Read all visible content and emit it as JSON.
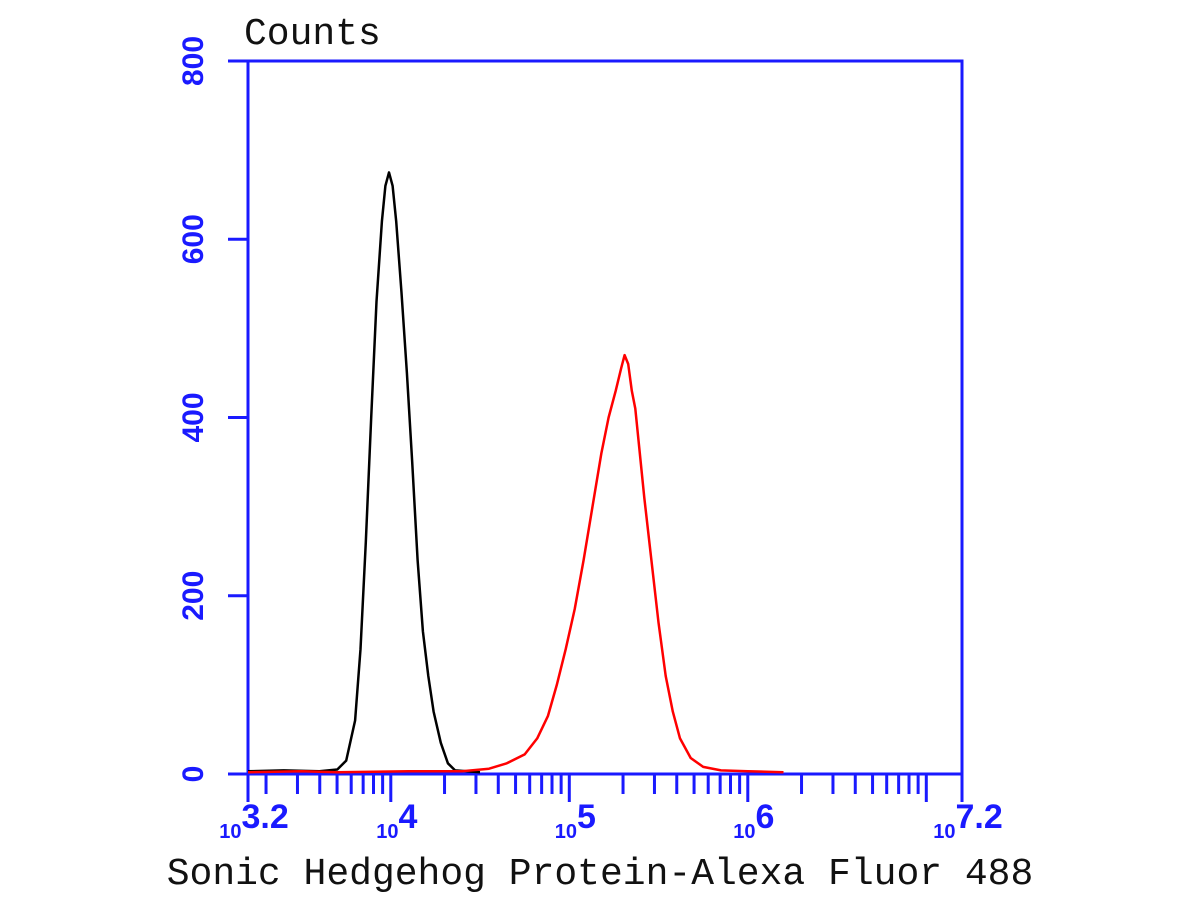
{
  "chart_data": {
    "type": "line",
    "title": "",
    "ylabel": "Counts",
    "xlabel": "Sonic Hedgehog Protein-Alexa Fluor 488",
    "x_scale": "log10",
    "xlim_log10": [
      3.2,
      7.2
    ],
    "ylim": [
      0,
      800
    ],
    "grid": false,
    "y_ticks": [
      {
        "value": 0,
        "label": "0"
      },
      {
        "value": 200,
        "label": "200"
      },
      {
        "value": 400,
        "label": "400"
      },
      {
        "value": 600,
        "label": "600"
      },
      {
        "value": 800,
        "label": "800"
      }
    ],
    "x_tick_labels": [
      {
        "exp": 3.2,
        "base": "10",
        "power": "3.2"
      },
      {
        "exp": 4,
        "base": "10",
        "power": "4"
      },
      {
        "exp": 5,
        "base": "10",
        "power": "5"
      },
      {
        "exp": 6,
        "base": "10",
        "power": "6"
      },
      {
        "exp": 7.2,
        "base": "10",
        "power": "7.2"
      }
    ],
    "series": [
      {
        "color": "#000000",
        "points": [
          [
            3.2,
            3
          ],
          [
            3.4,
            4
          ],
          [
            3.6,
            3
          ],
          [
            3.7,
            5
          ],
          [
            3.75,
            15
          ],
          [
            3.8,
            60
          ],
          [
            3.83,
            140
          ],
          [
            3.86,
            260
          ],
          [
            3.89,
            400
          ],
          [
            3.92,
            530
          ],
          [
            3.95,
            620
          ],
          [
            3.97,
            660
          ],
          [
            3.99,
            675
          ],
          [
            4.01,
            660
          ],
          [
            4.03,
            620
          ],
          [
            4.06,
            540
          ],
          [
            4.09,
            450
          ],
          [
            4.12,
            350
          ],
          [
            4.15,
            240
          ],
          [
            4.18,
            160
          ],
          [
            4.21,
            110
          ],
          [
            4.24,
            70
          ],
          [
            4.28,
            35
          ],
          [
            4.32,
            12
          ],
          [
            4.36,
            4
          ],
          [
            4.5,
            2
          ]
        ]
      },
      {
        "color": "#ff0000",
        "points": [
          [
            3.2,
            2
          ],
          [
            3.5,
            3
          ],
          [
            3.7,
            2
          ],
          [
            4.1,
            3
          ],
          [
            4.4,
            3
          ],
          [
            4.55,
            6
          ],
          [
            4.65,
            12
          ],
          [
            4.75,
            22
          ],
          [
            4.82,
            40
          ],
          [
            4.88,
            65
          ],
          [
            4.93,
            100
          ],
          [
            4.98,
            140
          ],
          [
            5.03,
            185
          ],
          [
            5.08,
            240
          ],
          [
            5.13,
            300
          ],
          [
            5.18,
            360
          ],
          [
            5.22,
            400
          ],
          [
            5.26,
            430
          ],
          [
            5.29,
            455
          ],
          [
            5.31,
            470
          ],
          [
            5.33,
            460
          ],
          [
            5.35,
            430
          ],
          [
            5.37,
            410
          ],
          [
            5.39,
            370
          ],
          [
            5.42,
            310
          ],
          [
            5.46,
            240
          ],
          [
            5.5,
            170
          ],
          [
            5.54,
            110
          ],
          [
            5.58,
            70
          ],
          [
            5.62,
            40
          ],
          [
            5.68,
            18
          ],
          [
            5.75,
            8
          ],
          [
            5.85,
            4
          ],
          [
            6.0,
            3
          ],
          [
            6.2,
            2
          ]
        ]
      }
    ]
  }
}
